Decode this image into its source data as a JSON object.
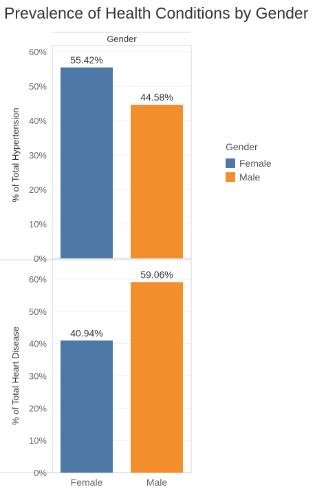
{
  "title": "Prevalence of Health Conditions by Gender",
  "header_label": "Gender",
  "colors": {
    "Female": "#4e79a7",
    "Male": "#f28e2b"
  },
  "legend": {
    "title": "Gender",
    "items": [
      {
        "label": "Female",
        "color": "#4e79a7"
      },
      {
        "label": "Male",
        "color": "#f28e2b"
      }
    ]
  },
  "chart_data": [
    {
      "type": "bar",
      "ylabel": "% of Total Hypertension",
      "categories": [
        "Female",
        "Male"
      ],
      "values": [
        55.42,
        44.58
      ],
      "labels": [
        "55.42%",
        "44.58%"
      ],
      "ylim": [
        0,
        60
      ],
      "yticks": [
        "0%",
        "10%",
        "20%",
        "30%",
        "40%",
        "50%",
        "60%"
      ],
      "ytick_values": [
        0,
        10,
        20,
        30,
        40,
        50,
        60
      ]
    },
    {
      "type": "bar",
      "ylabel": "% of Total Heart Disease",
      "categories": [
        "Female",
        "Male"
      ],
      "values": [
        40.94,
        59.06
      ],
      "labels": [
        "40.94%",
        "59.06%"
      ],
      "ylim": [
        0,
        60
      ],
      "yticks": [
        "0%",
        "10%",
        "20%",
        "30%",
        "40%",
        "50%",
        "60%"
      ],
      "ytick_values": [
        0,
        10,
        20,
        30,
        40,
        50,
        60
      ]
    }
  ]
}
